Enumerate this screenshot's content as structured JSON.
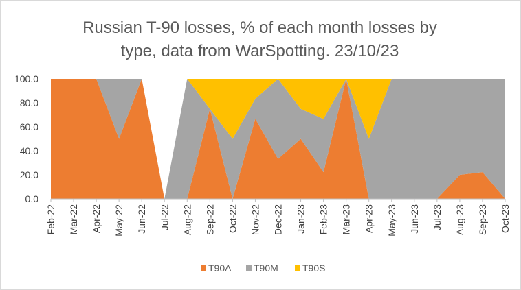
{
  "chart_data": {
    "type": "area",
    "stacked": true,
    "title_line1": "Russian T-90 losses, % of each month losses by",
    "title_line2": "type, data from WarSpotting. 23/10/23",
    "xlabel": "",
    "ylabel": "",
    "ylim": [
      0,
      100
    ],
    "yticks": [
      "0.0",
      "20.0",
      "40.0",
      "60.0",
      "80.0",
      "100.0"
    ],
    "categories": [
      "Feb-22",
      "Mar-22",
      "Apr-22",
      "May-22",
      "Jun-22",
      "Jul-22",
      "Aug-22",
      "Sep-22",
      "Oct-22",
      "Nov-22",
      "Dec-22",
      "Jan-23",
      "Feb-23",
      "Mar-23",
      "Apr-23",
      "May-23",
      "Jun-23",
      "Jul-23",
      "Aug-23",
      "Sep-23",
      "Oct-23"
    ],
    "series": [
      {
        "name": "T90A",
        "color": "#ed7d31",
        "values": [
          100,
          100,
          100,
          50,
          100,
          0,
          0,
          75,
          0,
          66.7,
          33.3,
          50,
          22.2,
          100,
          0,
          0,
          0,
          0,
          20,
          22.2,
          0
        ]
      },
      {
        "name": "T90M",
        "color": "#a5a5a5",
        "values": [
          0,
          0,
          0,
          50,
          0,
          0,
          100,
          0,
          50,
          16.7,
          66.7,
          25,
          44.4,
          0,
          50,
          100,
          100,
          100,
          80,
          77.8,
          100
        ]
      },
      {
        "name": "T90S",
        "color": "#ffc000",
        "values": [
          0,
          0,
          0,
          0,
          0,
          0,
          0,
          25,
          50,
          16.6,
          0,
          25,
          33.4,
          0,
          50,
          0,
          0,
          0,
          0,
          0,
          0
        ]
      }
    ],
    "grid": false,
    "legend_position": "bottom"
  }
}
